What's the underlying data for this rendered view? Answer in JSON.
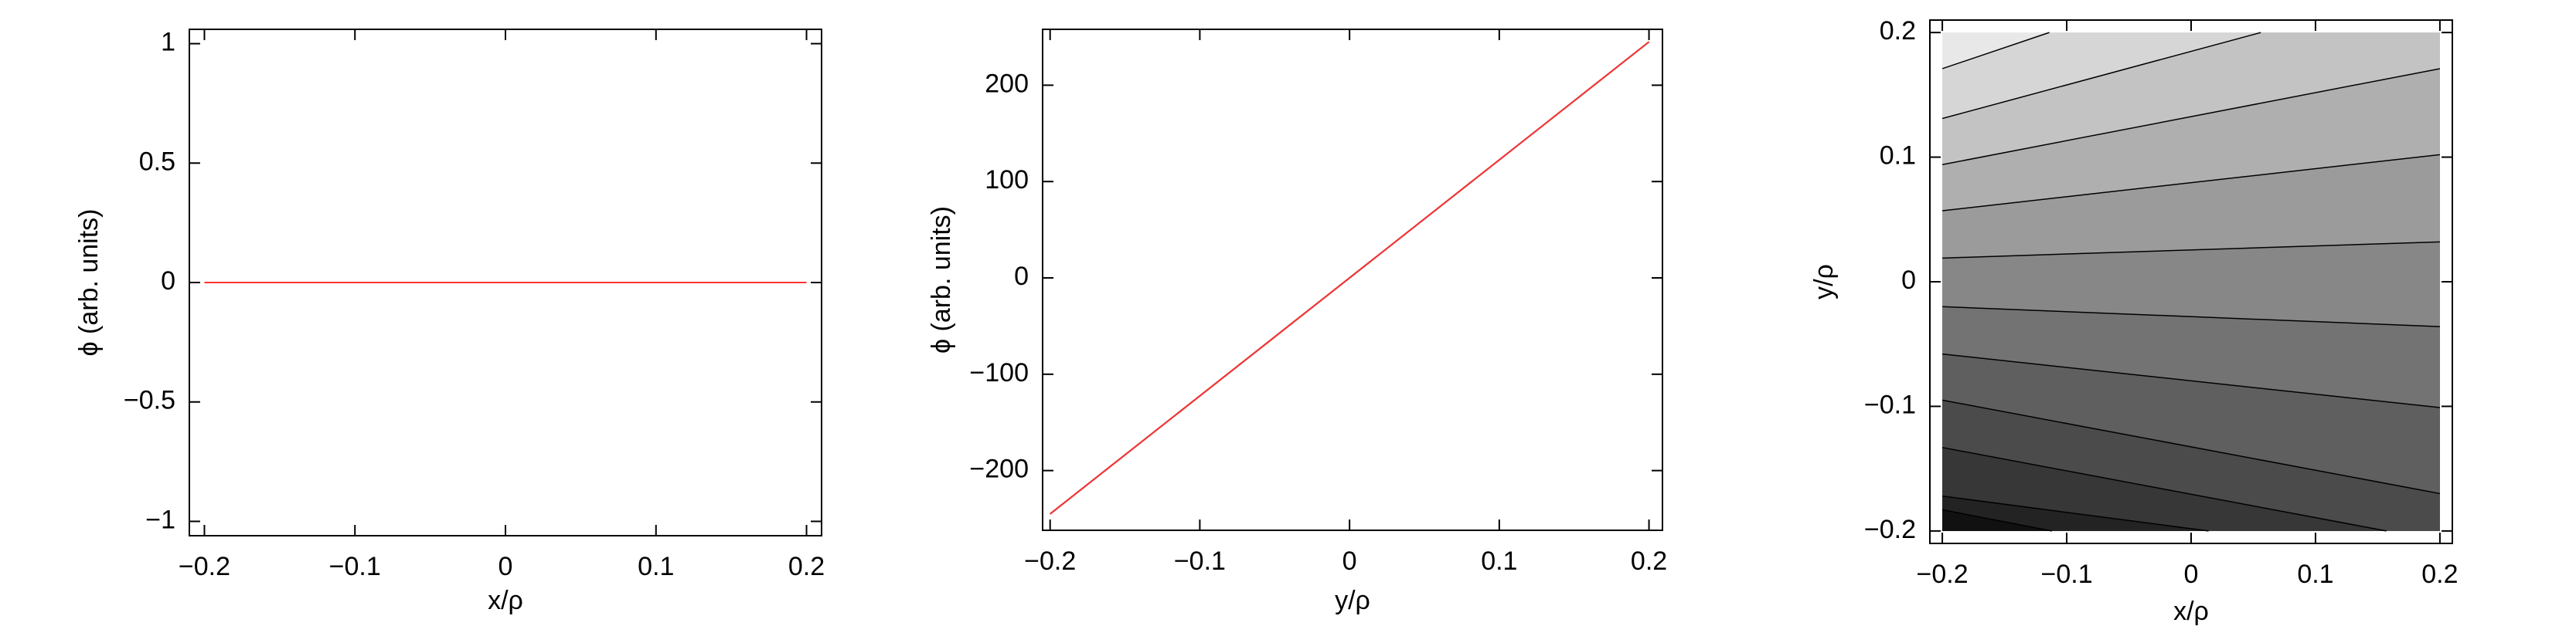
{
  "chart_data": [
    {
      "type": "line",
      "xlabel": "x/ρ",
      "ylabel": "ϕ (arb. units)",
      "x": [
        -0.2,
        0.2
      ],
      "series": [
        {
          "color": "#ff3333",
          "values": [
            0,
            0
          ]
        }
      ],
      "xlim": [
        -0.21,
        0.21
      ],
      "xticks": [
        {
          "value": -0.2,
          "label": "−0.2"
        },
        {
          "value": -0.1,
          "label": "−0.1"
        },
        0,
        0.1,
        0.2
      ],
      "ylim": [
        -1.06,
        1.06
      ],
      "yticks": [
        {
          "value": -1,
          "label": "−1"
        },
        {
          "value": -0.5,
          "label": "−0.5"
        },
        0,
        0.5,
        1
      ]
    },
    {
      "type": "line",
      "xlabel": "y/ρ",
      "ylabel": "ϕ (arb. units)",
      "x": [
        -0.2,
        0.2
      ],
      "series": [
        {
          "color": "#000000",
          "values": [
            -245,
            245
          ]
        },
        {
          "color": "#ff3333",
          "values": [
            -245,
            245
          ]
        }
      ],
      "xlim": [
        -0.205,
        0.209
      ],
      "xticks": [
        {
          "value": -0.2,
          "label": "−0.2"
        },
        {
          "value": -0.1,
          "label": "−0.1"
        },
        0,
        0.1,
        0.2
      ],
      "ylim": [
        -262,
        258
      ],
      "yticks": [
        {
          "value": -200,
          "label": "−200"
        },
        {
          "value": -100,
          "label": "−100"
        },
        0,
        100,
        200
      ]
    },
    {
      "type": "contour",
      "xlabel": "x/ρ",
      "ylabel": "y/ρ",
      "region": {
        "x": [
          -0.2,
          0.2
        ],
        "y": [
          -0.2,
          0.2
        ]
      },
      "colors": [
        "#e8e8e8",
        "#d6d6d6",
        "#c3c3c3",
        "#afafaf",
        "#9b9b9b",
        "#878787",
        "#737373",
        "#5f5f5f",
        "#4b4b4b",
        "#373737",
        "#232323",
        "#111111"
      ],
      "contours": [
        {
          "x": [
            -0.2,
            -0.114
          ],
          "y": [
            0.171,
            0.2
          ]
        },
        {
          "x": [
            -0.2,
            0.056
          ],
          "y": [
            0.131,
            0.2
          ]
        },
        {
          "x": [
            -0.2,
            0.2
          ],
          "y": [
            0.094,
            0.171
          ]
        },
        {
          "x": [
            -0.2,
            0.2
          ],
          "y": [
            0.057,
            0.102
          ]
        },
        {
          "x": [
            -0.2,
            0.2
          ],
          "y": [
            0.019,
            0.032
          ]
        },
        {
          "x": [
            -0.2,
            0.2
          ],
          "y": [
            -0.02,
            -0.036
          ]
        },
        {
          "x": [
            -0.2,
            0.2
          ],
          "y": [
            -0.058,
            -0.101
          ]
        },
        {
          "x": [
            -0.2,
            0.2
          ],
          "y": [
            -0.095,
            -0.17
          ]
        },
        {
          "x": [
            -0.2,
            0.157
          ],
          "y": [
            -0.133,
            -0.2
          ]
        },
        {
          "x": [
            -0.2,
            0.014
          ],
          "y": [
            -0.172,
            -0.2
          ]
        },
        {
          "x": [
            -0.2,
            -0.112
          ],
          "y": [
            -0.183,
            -0.2
          ]
        }
      ],
      "xlim": [
        -0.21,
        0.21
      ],
      "xticks": [
        {
          "value": -0.2,
          "label": "−0.2"
        },
        {
          "value": -0.1,
          "label": "−0.1"
        },
        0,
        0.1,
        0.2
      ],
      "ylim": [
        -0.21,
        0.21
      ],
      "yticks": [
        {
          "value": -0.2,
          "label": "−0.2"
        },
        {
          "value": -0.1,
          "label": "−0.1"
        },
        0,
        0.1,
        0.2
      ]
    }
  ]
}
